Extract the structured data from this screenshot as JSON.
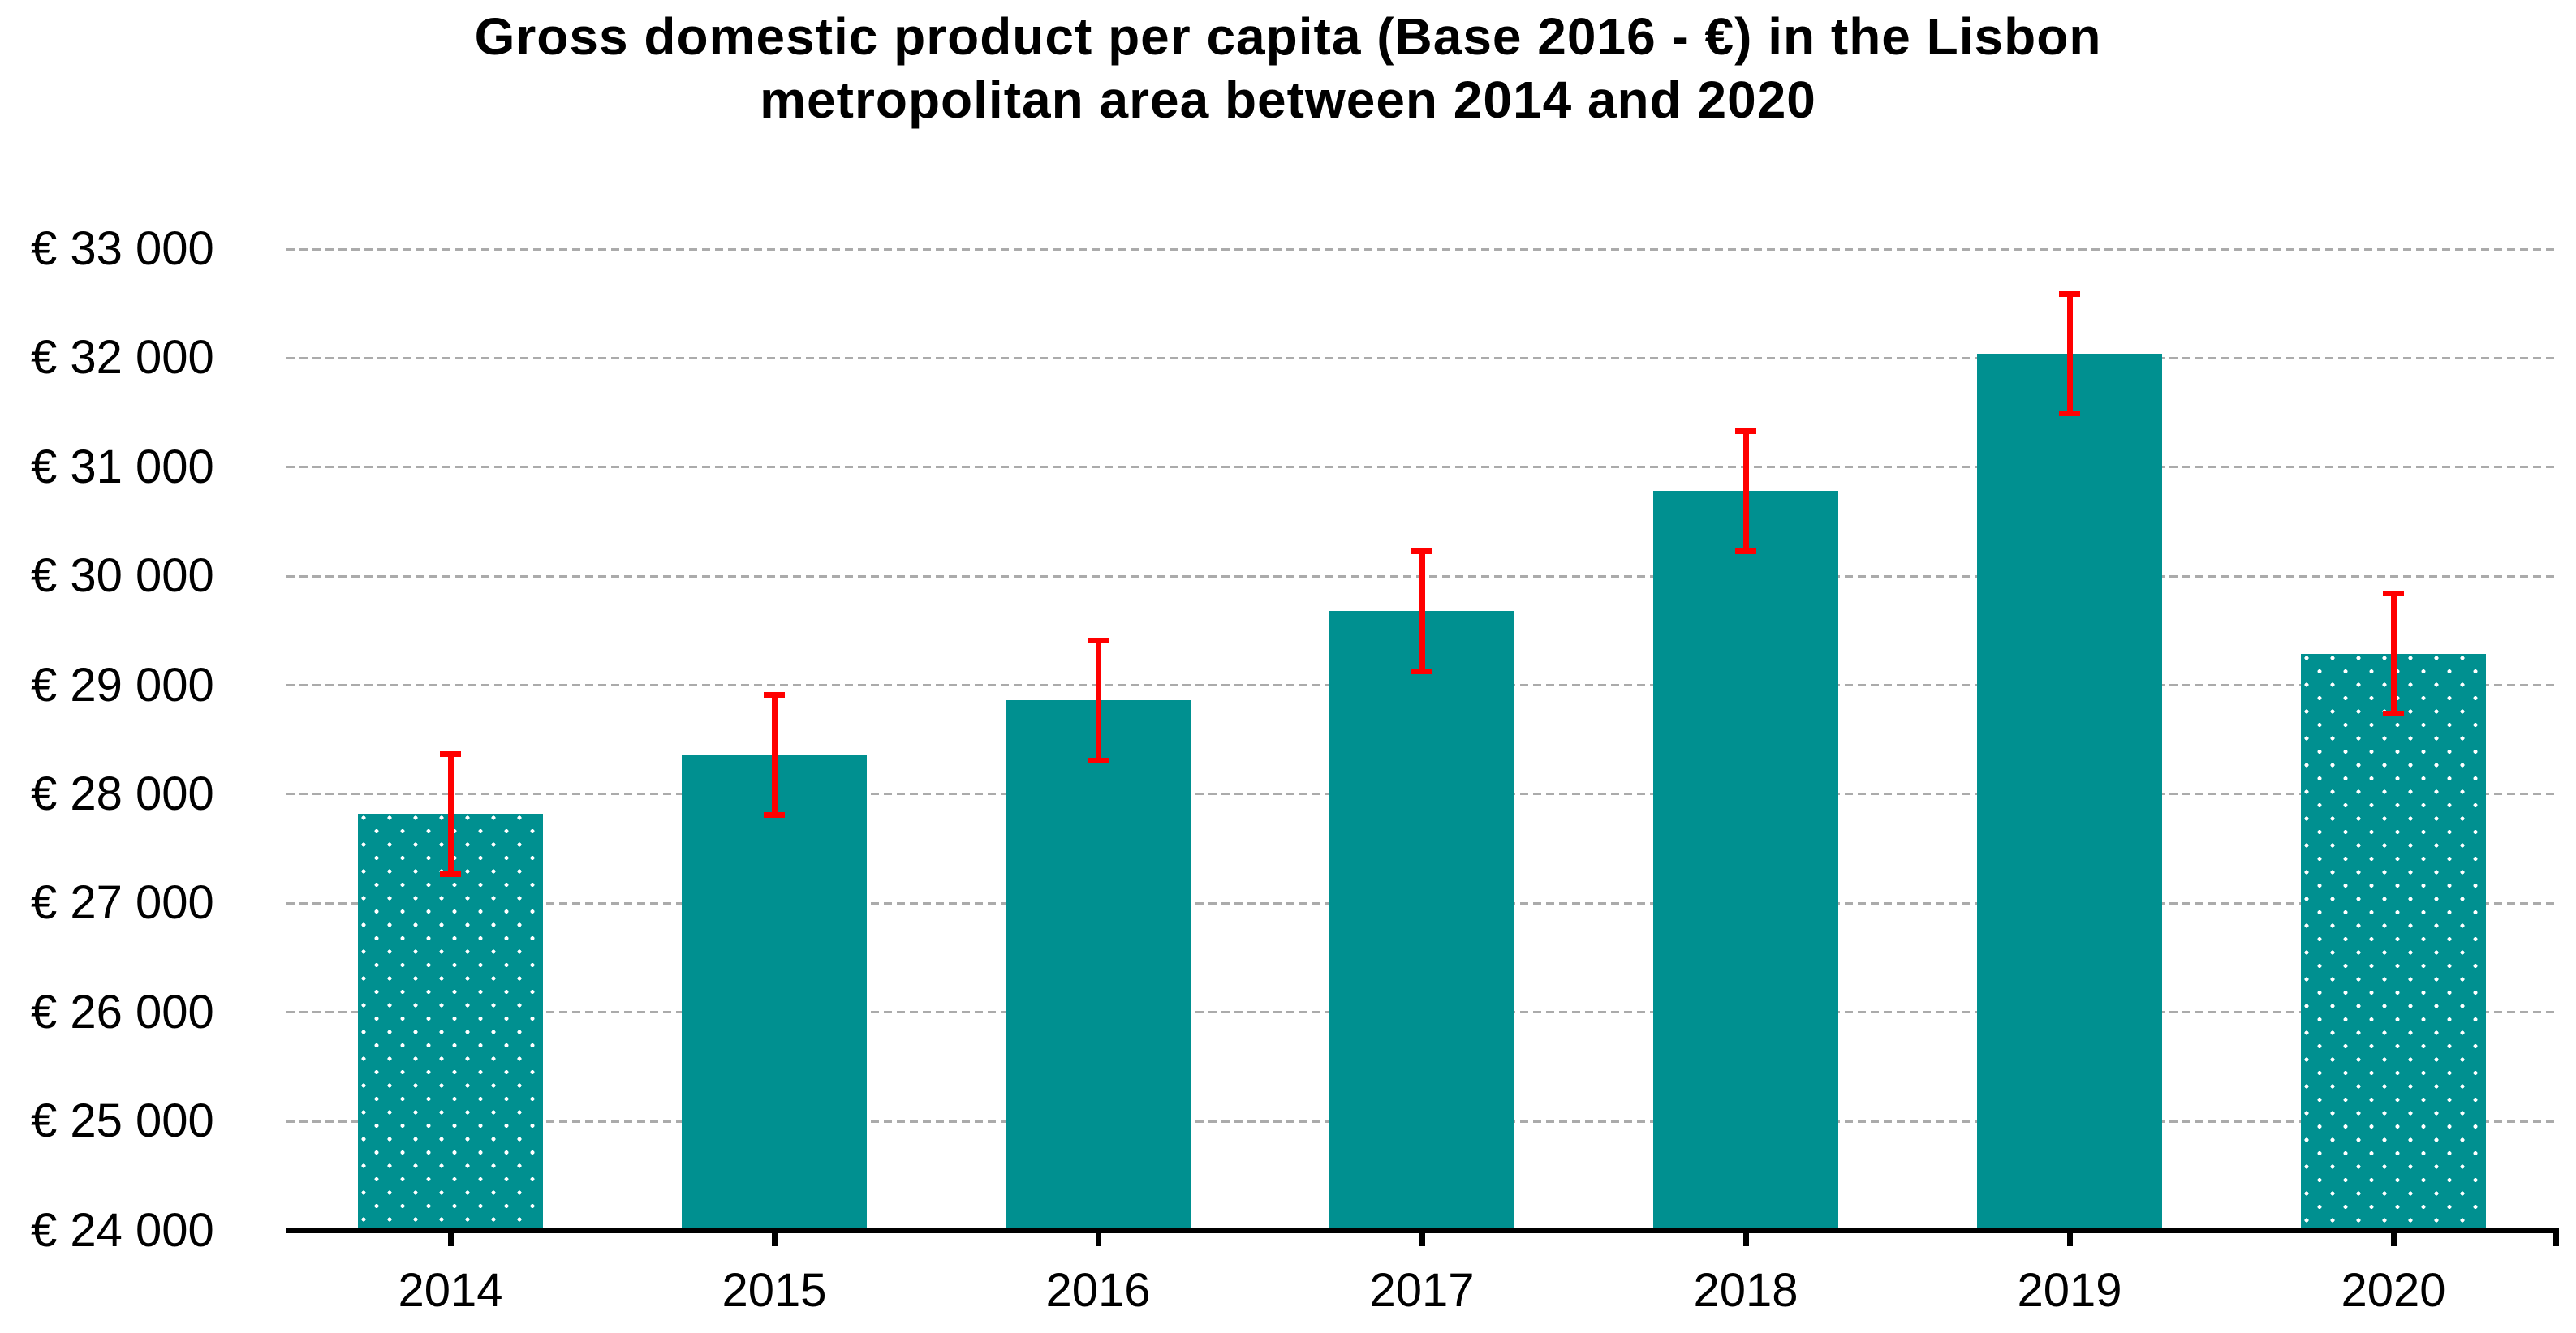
{
  "title": {
    "line1": "Gross domestic product per capita (Base 2016 - €) in the Lisbon",
    "line2": "metropolitan area between 2014 and 2020"
  },
  "chart_data": {
    "type": "bar",
    "title": "Gross domestic product per capita (Base 2016 - €) in the Lisbon metropolitan area between 2014 and 2020",
    "categories": [
      "2014",
      "2015",
      "2016",
      "2017",
      "2018",
      "2019",
      "2020"
    ],
    "series": [
      {
        "name": "GDP per capita (Base 2016 - €)",
        "values": [
          27820,
          28360,
          28860,
          29680,
          30780,
          32040,
          29290
        ]
      }
    ],
    "error_bars": {
      "type": "symmetric",
      "margin": 550,
      "color": "#FF0000"
    },
    "patterned_categories": [
      "2014",
      "2020"
    ],
    "pattern": "white-polka-dots",
    "bar_color": "#009090",
    "y_axis": {
      "min": 24000,
      "max": 33000,
      "step": 1000,
      "tick_labels": [
        "€ 33 000",
        "€ 32 000",
        "€ 31 000",
        "€ 30 000",
        "€ 29 000",
        "€ 28 000",
        "€ 27 000",
        "€ 26 000",
        "€ 25 000",
        "€ 24 000"
      ]
    },
    "x_axis": {
      "tick_labels": [
        "2014",
        "2015",
        "2016",
        "2017",
        "2018",
        "2019",
        "2020"
      ]
    },
    "grid": {
      "horizontal": "dashed",
      "color": "#ABABAB"
    },
    "legend": "none",
    "background": "#FFFFFF",
    "text_color": "#000000"
  }
}
